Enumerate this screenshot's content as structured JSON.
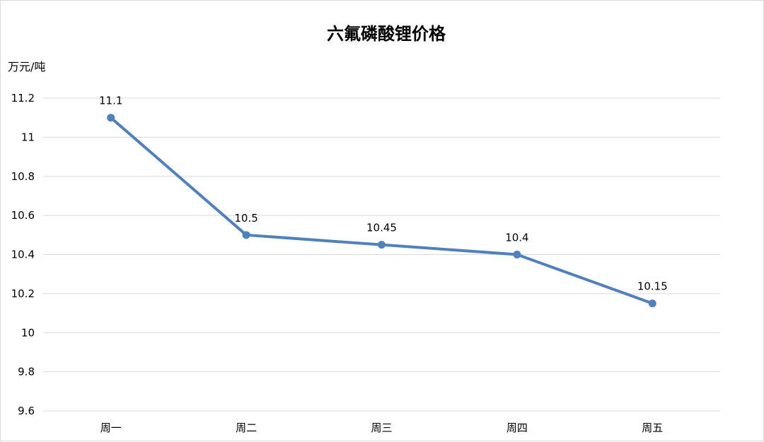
{
  "chart_data": {
    "type": "line",
    "title": "六氟磷酸锂价格",
    "ylabel": "万元/吨",
    "xlabel": "",
    "categories": [
      "周一",
      "周二",
      "周三",
      "周四",
      "周五"
    ],
    "series": [
      {
        "values": [
          11.1,
          10.5,
          10.45,
          10.4,
          10.15
        ],
        "data_labels": [
          "11.1",
          "10.5",
          "10.45",
          "10.4",
          "10.15"
        ],
        "color": "#4f81bd"
      }
    ],
    "ylim": [
      9.6,
      11.2
    ],
    "yticks": [
      9.6,
      9.8,
      10,
      10.2,
      10.4,
      10.6,
      10.8,
      11,
      11.2
    ],
    "ytick_labels": [
      "9.6",
      "9.8",
      "10",
      "10.2",
      "10.4",
      "10.6",
      "10.8",
      "11",
      "11.2"
    ],
    "grid": true,
    "legend": "none"
  }
}
